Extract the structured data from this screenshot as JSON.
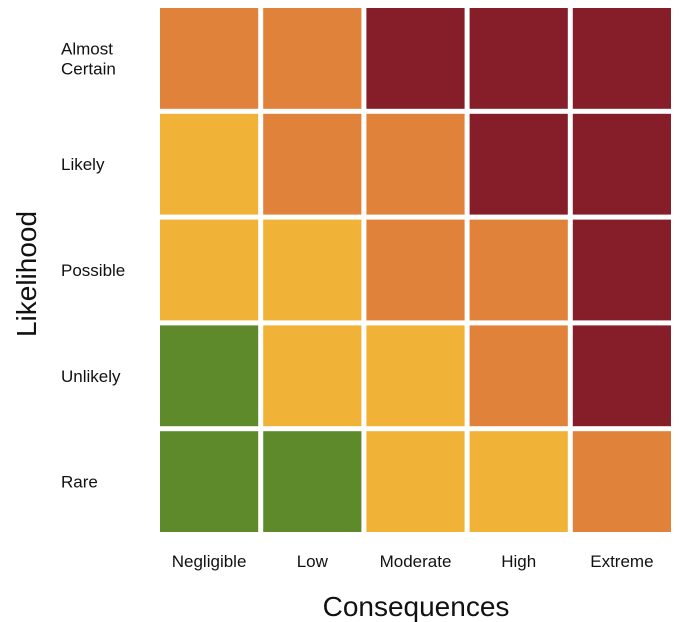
{
  "chart_data": {
    "type": "heatmap",
    "xlabel": "Consequences",
    "ylabel": "Likelihood",
    "x_categories": [
      "Negligible",
      "Low",
      "Moderate",
      "High",
      "Extreme"
    ],
    "y_categories": [
      "Almost Certain",
      "Likely",
      "Possible",
      "Unlikely",
      "Rare"
    ],
    "levels": {
      "green": "#5e8a2c",
      "yellow": "#f0b338",
      "orange": "#e0823a",
      "red": "#861e2a"
    },
    "cells": [
      [
        "orange",
        "orange",
        "red",
        "red",
        "red"
      ],
      [
        "yellow",
        "orange",
        "orange",
        "red",
        "red"
      ],
      [
        "yellow",
        "yellow",
        "orange",
        "orange",
        "red"
      ],
      [
        "green",
        "yellow",
        "yellow",
        "orange",
        "red"
      ],
      [
        "green",
        "green",
        "yellow",
        "yellow",
        "orange"
      ]
    ]
  }
}
